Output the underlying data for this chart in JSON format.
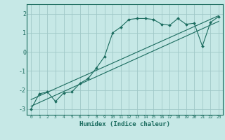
{
  "title": "",
  "xlabel": "Humidex (Indice chaleur)",
  "bg_color": "#c6e8e6",
  "grid_color": "#a0c8c8",
  "line_color": "#1a6b5e",
  "xlim": [
    -0.5,
    23.5
  ],
  "ylim": [
    -3.3,
    2.5
  ],
  "yticks": [
    -3,
    -2,
    -1,
    0,
    1,
    2
  ],
  "xticks": [
    0,
    1,
    2,
    3,
    4,
    5,
    6,
    7,
    8,
    9,
    10,
    11,
    12,
    13,
    14,
    15,
    16,
    17,
    18,
    19,
    20,
    21,
    22,
    23
  ],
  "line1_x": [
    0,
    1,
    2,
    3,
    4,
    5,
    6,
    7,
    8,
    9,
    10,
    11,
    12,
    13,
    14,
    15,
    16,
    17,
    18,
    19,
    20,
    21,
    22,
    23
  ],
  "line1_y": [
    -3.0,
    -2.2,
    -2.1,
    -2.6,
    -2.15,
    -2.1,
    -1.65,
    -1.4,
    -0.85,
    -0.25,
    1.0,
    1.3,
    1.7,
    1.75,
    1.75,
    1.7,
    1.45,
    1.4,
    1.75,
    1.45,
    1.5,
    0.3,
    1.55,
    1.85
  ],
  "line2_x": [
    0,
    23
  ],
  "line2_y": [
    -2.5,
    1.9
  ],
  "line3_x": [
    0,
    23
  ],
  "line3_y": [
    -2.85,
    1.6
  ]
}
